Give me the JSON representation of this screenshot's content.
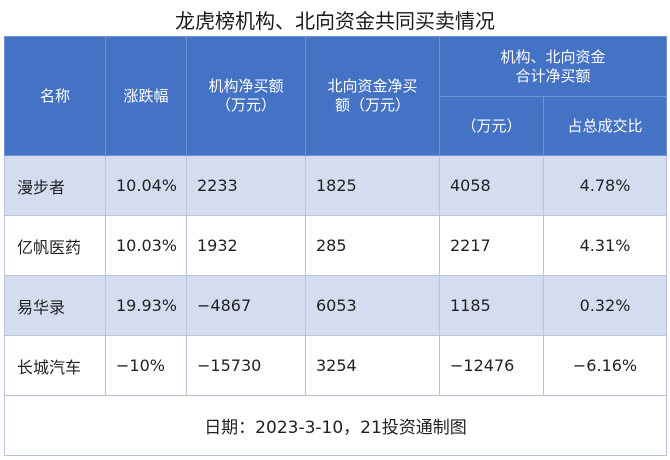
{
  "title": "龙虎榜机构、北向资金共同买卖情况",
  "headers": {
    "name": "名称",
    "change": "涨跌幅",
    "inst_line1": "机构净买额",
    "inst_line2": "（万元）",
    "north_line1": "北向资金净买",
    "north_line2": "额（万元）",
    "combined_line1": "机构、北向资金",
    "combined_line2": "合计净买额",
    "combined_unit": "（万元）",
    "ratio": "占总成交比"
  },
  "rows": [
    {
      "name": "漫步者",
      "change": "10.04%",
      "inst": "2233",
      "north": "1825",
      "total": "4058",
      "ratio": "4.78%"
    },
    {
      "name": "亿帆医药",
      "change": "10.03%",
      "inst": "1932",
      "north": "285",
      "total": "2217",
      "ratio": "4.31%"
    },
    {
      "name": "易华录",
      "change": "19.93%",
      "inst": "−4867",
      "north": "6053",
      "total": "1185",
      "ratio": "0.32%"
    },
    {
      "name": "长城汽车",
      "change": "−10%",
      "inst": "−15730",
      "north": "3254",
      "total": "−12476",
      "ratio": "−6.16%"
    }
  ],
  "footer": "日期：2023-3-10，21投资通制图",
  "colors": {
    "header_bg": "#4472c4",
    "stripe_bg": "#d4ddf0"
  }
}
